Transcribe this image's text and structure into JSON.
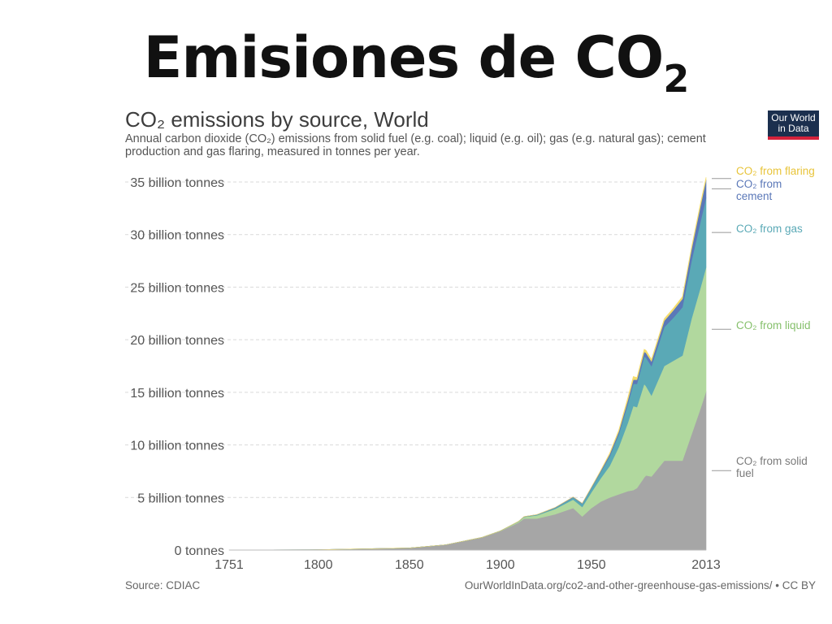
{
  "slide": {
    "title_main": "Emisiones de CO",
    "title_sub": "2"
  },
  "header": {
    "title": "CO₂ emissions by source, World",
    "subtitle": "Annual carbon dioxide (CO₂) emissions from solid fuel (e.g. coal); liquid (e.g. oil); gas (e.g. natural gas); cement production and gas flaring, measured in tonnes per year.",
    "logo_line1": "Our World",
    "logo_line2": "in Data"
  },
  "footer": {
    "source": "Source: CDIAC",
    "url": "OurWorldInData.org/co2-and-other-greenhouse-gas-emissions/ • CC BY"
  },
  "chart_data": {
    "type": "area",
    "stacked": true,
    "title": "CO₂ emissions by source, World",
    "xlim": [
      1751,
      2013
    ],
    "ylim": [
      0,
      35
    ],
    "y_unit": "billion tonnes",
    "x_ticks": [
      "1751",
      "1800",
      "1850",
      "1900",
      "1950",
      "2013"
    ],
    "y_ticks": [
      "0 tonnes",
      "5 billion tonnes",
      "10 billion tonnes",
      "15 billion tonnes",
      "20 billion tonnes",
      "25 billion tonnes",
      "30 billion tonnes",
      "35 billion tonnes"
    ],
    "grid": true,
    "legend": "right",
    "x": [
      1751,
      1800,
      1850,
      1870,
      1890,
      1900,
      1910,
      1913,
      1920,
      1930,
      1940,
      1945,
      1950,
      1955,
      1960,
      1965,
      1970,
      1973,
      1975,
      1979,
      1980,
      1983,
      1990,
      1995,
      2000,
      2005,
      2010,
      2013
    ],
    "series": [
      {
        "name": "CO₂ from solid fuel",
        "color": "#a6a6a6",
        "values": [
          0.01,
          0.03,
          0.2,
          0.5,
          1.2,
          1.8,
          2.6,
          3.0,
          3.0,
          3.4,
          4.0,
          3.2,
          4.0,
          4.6,
          5.0,
          5.3,
          5.6,
          5.7,
          5.9,
          6.9,
          7.1,
          7.0,
          8.5,
          8.5,
          8.5,
          11.0,
          13.5,
          15.1
        ]
      },
      {
        "name": "CO₂ from liquid",
        "color": "#b1d89e",
        "values": [
          0,
          0,
          0,
          0,
          0.01,
          0.02,
          0.1,
          0.15,
          0.3,
          0.5,
          0.8,
          0.9,
          1.5,
          2.2,
          3.0,
          4.5,
          6.5,
          8.0,
          7.7,
          8.9,
          8.5,
          7.7,
          9.0,
          9.5,
          10.0,
          11.0,
          11.5,
          11.8
        ]
      },
      {
        "name": "CO₂ from gas",
        "color": "#5aa9b6",
        "values": [
          0,
          0,
          0,
          0,
          0,
          0,
          0.02,
          0.02,
          0.05,
          0.1,
          0.2,
          0.3,
          0.4,
          0.6,
          0.9,
          1.2,
          1.8,
          2.1,
          2.2,
          2.6,
          2.7,
          2.8,
          3.7,
          4.1,
          4.6,
          5.5,
          6.3,
          6.6
        ]
      },
      {
        "name": "CO₂ from cement",
        "color": "#5b78b8",
        "values": [
          0,
          0,
          0,
          0,
          0,
          0,
          0.01,
          0.01,
          0.02,
          0.04,
          0.05,
          0.04,
          0.07,
          0.1,
          0.2,
          0.25,
          0.35,
          0.4,
          0.4,
          0.45,
          0.45,
          0.45,
          0.6,
          0.7,
          0.8,
          1.1,
          1.5,
          1.7
        ]
      },
      {
        "name": "CO₂ from flaring",
        "color": "#f4dc6a",
        "values": [
          0,
          0,
          0,
          0,
          0,
          0,
          0,
          0,
          0,
          0,
          0,
          0,
          0.02,
          0.05,
          0.1,
          0.15,
          0.25,
          0.3,
          0.2,
          0.25,
          0.25,
          0.2,
          0.2,
          0.2,
          0.2,
          0.2,
          0.25,
          0.25
        ]
      }
    ],
    "series_labels": [
      [
        "CO₂ from flaring"
      ],
      [
        "CO₂ from",
        "cement"
      ],
      [
        "CO₂ from gas"
      ],
      [
        "CO₂ from liquid"
      ],
      [
        "CO₂ from solid",
        "fuel"
      ]
    ]
  }
}
